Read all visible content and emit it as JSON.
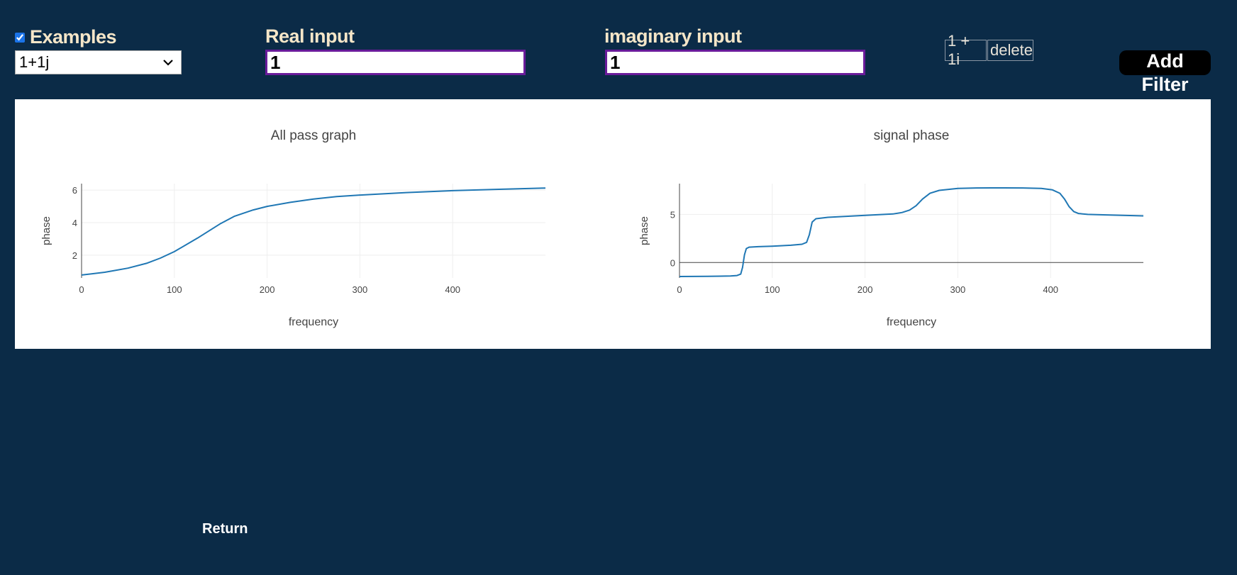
{
  "examples": {
    "label": "Examples",
    "checked": true,
    "selected": "1+1j"
  },
  "real_input": {
    "label": "Real input",
    "value": "1"
  },
  "imaginary_input": {
    "label": "imaginary input",
    "value": "1"
  },
  "filter_list": [
    {
      "value": "1 + 1i",
      "delete_label": "delete"
    }
  ],
  "add_filter": {
    "label_line1": "Add",
    "label_line2": "Filter"
  },
  "return_label": "Return",
  "colors": {
    "background": "#0b2b47",
    "label": "#f5e6c8",
    "input_border": "#6a1b9a",
    "trace": "#1f77b4"
  },
  "chart_data": [
    {
      "type": "line",
      "title": "All pass graph",
      "xlabel": "frequency",
      "ylabel": "phase",
      "xlim": [
        0,
        500
      ],
      "ylim": [
        0.6,
        6.4
      ],
      "xticks": [
        0,
        100,
        200,
        300,
        400
      ],
      "yticks": [
        2,
        4,
        6
      ],
      "grid": true,
      "series": [
        {
          "x": [
            0,
            25,
            50,
            70,
            85,
            100,
            125,
            150,
            165,
            185,
            200,
            225,
            250,
            275,
            300,
            350,
            400,
            450,
            500
          ],
          "y": [
            0.78,
            0.95,
            1.2,
            1.5,
            1.82,
            2.22,
            3.05,
            3.95,
            4.4,
            4.78,
            5.0,
            5.25,
            5.45,
            5.6,
            5.7,
            5.85,
            5.97,
            6.05,
            6.13
          ]
        }
      ]
    },
    {
      "type": "line",
      "title": "signal phase",
      "xlabel": "frequency",
      "ylabel": "phase",
      "xlim": [
        0,
        500
      ],
      "ylim": [
        -1.6,
        8.2
      ],
      "xticks": [
        0,
        100,
        200,
        300,
        400
      ],
      "yticks": [
        0,
        5
      ],
      "grid": true,
      "series": [
        {
          "x": [
            0,
            30,
            55,
            62,
            66,
            68,
            70,
            72,
            75,
            85,
            100,
            120,
            132,
            137,
            140,
            143,
            147,
            160,
            180,
            200,
            230,
            240,
            248,
            255,
            262,
            270,
            280,
            300,
            320,
            350,
            370,
            390,
            402,
            410,
            415,
            420,
            425,
            430,
            440,
            460,
            500
          ],
          "y": [
            -1.45,
            -1.43,
            -1.4,
            -1.35,
            -1.2,
            -0.5,
            0.8,
            1.45,
            1.6,
            1.65,
            1.7,
            1.8,
            1.9,
            2.1,
            2.9,
            4.2,
            4.55,
            4.7,
            4.8,
            4.9,
            5.05,
            5.2,
            5.45,
            5.9,
            6.6,
            7.2,
            7.5,
            7.7,
            7.75,
            7.76,
            7.75,
            7.7,
            7.55,
            7.2,
            6.6,
            5.8,
            5.3,
            5.1,
            5.0,
            4.95,
            4.85
          ]
        }
      ]
    }
  ]
}
